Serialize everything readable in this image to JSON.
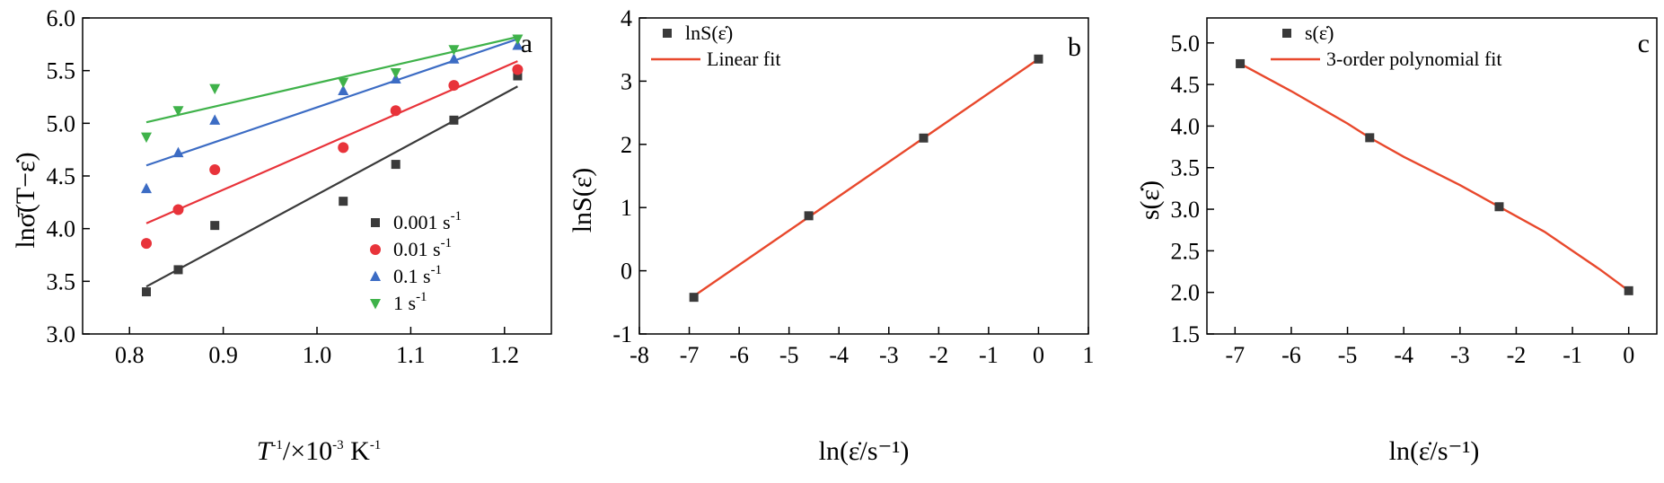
{
  "chart_data": [
    {
      "panel": "a",
      "type": "scatter",
      "xlabel": {
        "pre": "T",
        "sup1": "-1",
        "mid": "/×10",
        "sup2": "-3",
        "post": " K",
        "sup3": "-1"
      },
      "ylabel": "lnσ̄(T−ε̇)",
      "xlim": [
        0.75,
        1.25
      ],
      "ylim": [
        3.0,
        6.0
      ],
      "xticks": [
        "0.8",
        "0.9",
        "1.0",
        "1.1",
        "1.2"
      ],
      "yticks": [
        "3.0",
        "3.5",
        "4.0",
        "4.5",
        "5.0",
        "5.5",
        "6.0"
      ],
      "legend_position": "bottom-right",
      "series": [
        {
          "name": "0.001 s",
          "sup": "-1",
          "color": "#3a3a3a",
          "marker": "square",
          "x": [
            0.818,
            0.852,
            0.891,
            1.028,
            1.084,
            1.146,
            1.214
          ],
          "y": [
            3.4,
            3.61,
            4.03,
            4.26,
            4.61,
            5.03,
            5.45
          ],
          "fit": [
            [
              0.818,
              3.45
            ],
            [
              1.214,
              5.35
            ]
          ]
        },
        {
          "name": "0.01 s",
          "sup": "-1",
          "color": "#e8333a",
          "marker": "circle",
          "x": [
            0.818,
            0.852,
            0.891,
            1.028,
            1.084,
            1.146,
            1.214
          ],
          "y": [
            3.86,
            4.18,
            4.56,
            4.77,
            5.12,
            5.36,
            5.51
          ],
          "fit": [
            [
              0.818,
              4.05
            ],
            [
              1.214,
              5.59
            ]
          ]
        },
        {
          "name": "0.1 s",
          "sup": "-1",
          "color": "#3c6cc4",
          "marker": "triangle-up",
          "x": [
            0.818,
            0.852,
            0.891,
            1.028,
            1.084,
            1.146,
            1.214
          ],
          "y": [
            4.38,
            4.72,
            5.03,
            5.31,
            5.42,
            5.61,
            5.74
          ],
          "fit": [
            [
              0.818,
              4.6
            ],
            [
              1.214,
              5.8
            ]
          ]
        },
        {
          "name": "1 s",
          "sup": "-1",
          "color": "#3fb24a",
          "marker": "triangle-down",
          "x": [
            0.818,
            0.852,
            0.891,
            1.028,
            1.084,
            1.146,
            1.214
          ],
          "y": [
            4.87,
            5.12,
            5.33,
            5.39,
            5.48,
            5.7,
            5.8
          ],
          "fit": [
            [
              0.818,
              5.01
            ],
            [
              1.214,
              5.82
            ]
          ]
        }
      ]
    },
    {
      "panel": "b",
      "type": "scatter",
      "xlabel": "ln(ε̇/s⁻¹)",
      "ylabel": "lnS(ε̇)",
      "xlim": [
        -8,
        1
      ],
      "ylim": [
        -1,
        4
      ],
      "xticks": [
        "-8",
        "-7",
        "-6",
        "-5",
        "-4",
        "-3",
        "-2",
        "-1",
        "0",
        "1"
      ],
      "yticks": [
        "-1",
        "0",
        "1",
        "2",
        "3",
        "4"
      ],
      "legend_position": "top-left",
      "series": [
        {
          "name": "lnS(ε̇)",
          "color": "#3a3a3a",
          "marker": "square",
          "x": [
            -6.908,
            -4.605,
            -2.303,
            0.0
          ],
          "y": [
            -0.42,
            0.87,
            2.1,
            3.35
          ]
        },
        {
          "name": "Linear fit",
          "color": "#e8482c",
          "type": "line",
          "x": [
            -6.908,
            0.0
          ],
          "y": [
            -0.4,
            3.35
          ]
        }
      ]
    },
    {
      "panel": "c",
      "type": "scatter",
      "xlabel": "ln(ε̇/s⁻¹)",
      "ylabel": "s(ε̇)",
      "xlim": [
        -7.5,
        0.5
      ],
      "ylim": [
        1.5,
        5.3
      ],
      "xticks": [
        "-7",
        "-6",
        "-5",
        "-4",
        "-3",
        "-2",
        "-1",
        "0"
      ],
      "yticks": [
        "1.5",
        "2.0",
        "2.5",
        "3.0",
        "3.5",
        "4.0",
        "4.5",
        "5.0"
      ],
      "legend_position": "top-center",
      "series": [
        {
          "name": "s(ε̇)",
          "color": "#3a3a3a",
          "marker": "square",
          "x": [
            -6.908,
            -4.605,
            -2.303,
            0.0
          ],
          "y": [
            4.75,
            3.86,
            3.03,
            2.02
          ]
        },
        {
          "name": "3-order polynomial fit",
          "color": "#e8482c",
          "type": "line",
          "x": [
            -6.908,
            -6.0,
            -5.0,
            -4.605,
            -4.0,
            -3.0,
            -2.303,
            -1.5,
            -1.0,
            -0.5,
            0.0
          ],
          "y": [
            4.75,
            4.42,
            4.03,
            3.86,
            3.63,
            3.29,
            3.03,
            2.73,
            2.5,
            2.27,
            2.02
          ]
        }
      ]
    }
  ]
}
